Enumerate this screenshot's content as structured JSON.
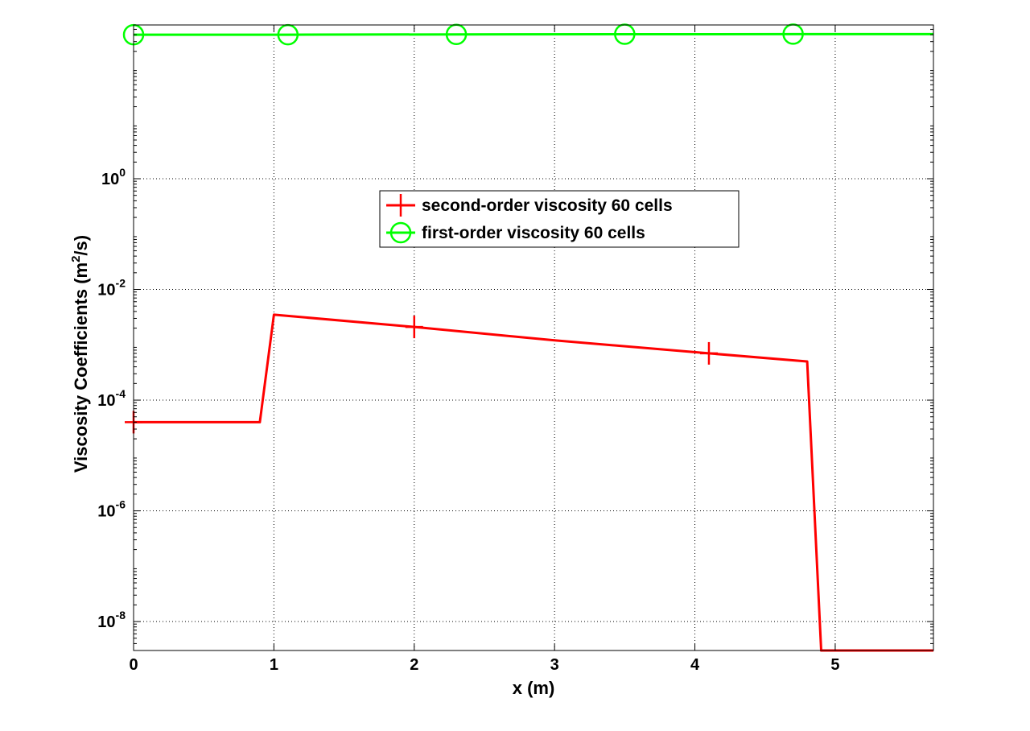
{
  "chart_data": {
    "type": "line",
    "title": "",
    "xlabel": "x (m)",
    "ylabel_main": "Viscosity Coefficients (m",
    "ylabel_sup": "2",
    "ylabel_end": "/s)",
    "x_scale": "linear",
    "y_scale": "log",
    "xlim": [
      0,
      5.7
    ],
    "ylim": [
      3e-09,
      600
    ],
    "x_ticks": [
      {
        "value": 0,
        "label": "0"
      },
      {
        "value": 1,
        "label": "1"
      },
      {
        "value": 2,
        "label": "2"
      },
      {
        "value": 3,
        "label": "3"
      },
      {
        "value": 4,
        "label": "4"
      },
      {
        "value": 5,
        "label": "5"
      }
    ],
    "y_ticks": [
      {
        "value": 1,
        "base": "10",
        "exp": "0"
      },
      {
        "value": 0.01,
        "base": "10",
        "exp": "-2"
      },
      {
        "value": 0.0001,
        "base": "10",
        "exp": "-4"
      },
      {
        "value": 1e-06,
        "base": "10",
        "exp": "-6"
      },
      {
        "value": 1e-08,
        "base": "10",
        "exp": "-8"
      }
    ],
    "grid": true,
    "legend_position": "center",
    "series": [
      {
        "name": "second-order viscosity 60 cells",
        "color": "#ff0000",
        "marker": "plus",
        "x": [
          0,
          0.9,
          1.0,
          2.0,
          3.0,
          4.1,
          4.8,
          4.9,
          5.7
        ],
        "y": [
          4e-05,
          4e-05,
          0.0035,
          0.0021,
          0.0012,
          0.0007,
          0.0005,
          3e-09,
          3e-09
        ],
        "marker_x": [
          0,
          2.0,
          4.1
        ],
        "marker_y": [
          4e-05,
          0.0021,
          0.0007
        ]
      },
      {
        "name": "first-order viscosity 60 cells",
        "color": "#00ff00",
        "marker": "circle",
        "x": [
          0,
          1.1,
          2.3,
          3.5,
          4.7,
          5.7
        ],
        "y": [
          400,
          400,
          405,
          408,
          410,
          410
        ],
        "marker_x": [
          0,
          1.1,
          2.3,
          3.5,
          4.7
        ],
        "marker_y": [
          400,
          400,
          405,
          408,
          410
        ]
      }
    ]
  }
}
